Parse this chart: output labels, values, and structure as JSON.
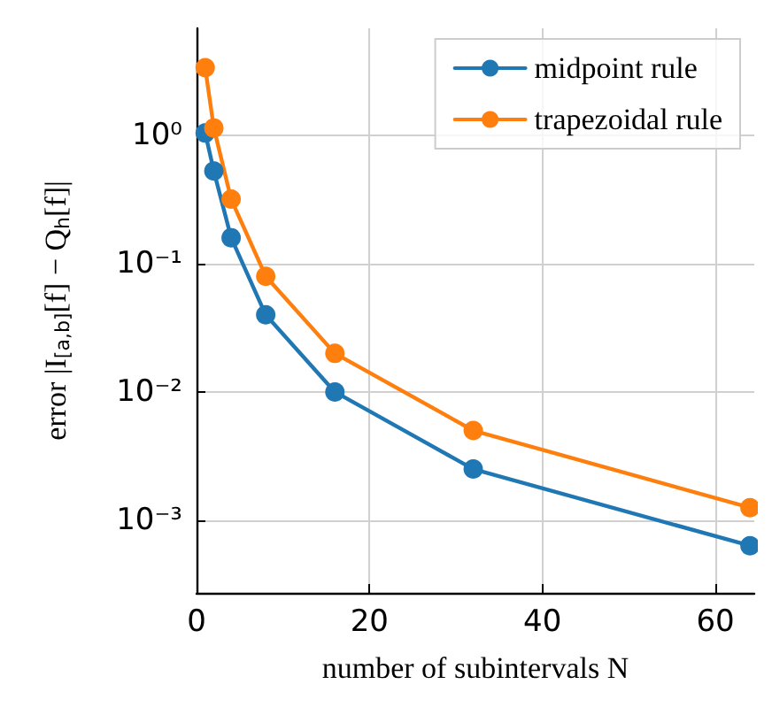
{
  "chart_data": {
    "type": "line",
    "xlabel": "number of subintervals N",
    "ylabel": "error |I$_{[a,b]}$[f] − Q$_{h}$[f]|",
    "x": [
      1,
      2,
      4,
      8,
      16,
      32,
      64
    ],
    "series": [
      {
        "name": "midpoint rule",
        "color": "#1f77b4",
        "values": [
          1.05,
          0.53,
          0.16,
          0.04,
          0.01,
          0.0025,
          0.00063
        ]
      },
      {
        "name": "trapezoidal rule",
        "color": "#ff7f0e",
        "values": [
          3.4,
          1.15,
          0.32,
          0.08,
          0.02,
          0.005,
          0.00125
        ]
      }
    ],
    "xlim": [
      0,
      64.5
    ],
    "xticks": [
      0,
      20,
      40,
      60
    ],
    "ylim": [
      0.00027,
      6.9
    ],
    "yticks": [
      {
        "value": 0.001,
        "label": "10⁻³"
      },
      {
        "value": 0.01,
        "label": "10⁻²"
      },
      {
        "value": 0.1,
        "label": "10⁻¹"
      },
      {
        "value": 1,
        "label": "10⁰"
      }
    ],
    "log": "y",
    "grid": true,
    "legend": "top right",
    "marker": "circle",
    "line_style": "solid"
  }
}
